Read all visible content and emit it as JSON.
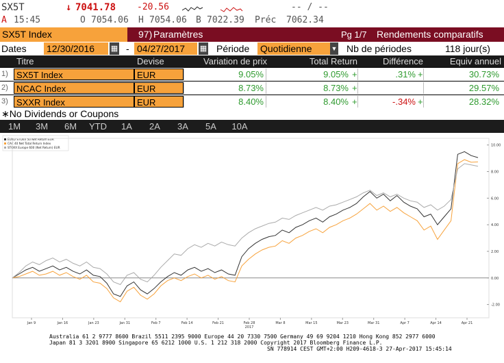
{
  "quote": {
    "ticker": "SX5T",
    "arrow": "↓",
    "last": "7041.78",
    "change": "-20.56",
    "right_placeholder": "-- / --",
    "ask_label": "A",
    "time": "15:45",
    "open_label": "O",
    "open": "7054.06",
    "high_label": "H",
    "high": "7054.06",
    "low_label": "B",
    "low": "7022.39",
    "prev_label": "Préc",
    "prev": "7062.34"
  },
  "function_bar": {
    "security": "SX5T Index",
    "menu_number": "97)",
    "menu_label": "Paramètres",
    "page": "Pg 1/7",
    "title": "Rendements comparatifs"
  },
  "dates_row": {
    "label": "Dates",
    "start": "12/30/2016",
    "dash": "-",
    "end": "04/27/2017",
    "period_label": "Période",
    "period_value": "Quotidienne",
    "nb_label": "Nb de périodes",
    "nb_value": "118 jour(s)"
  },
  "table": {
    "headers": [
      "Titre",
      "Devise",
      "Variation de prix",
      "Total Return",
      "Différence",
      "Equiv annuel"
    ],
    "rows": [
      {
        "idx": "1)",
        "title": "SX5T Index",
        "currency": "EUR",
        "price_change": "9.05%",
        "total_return": "9.05%",
        "tr_mark": "+",
        "difference": ".31%",
        "diff_mark": "+",
        "annual": "30.73%"
      },
      {
        "idx": "2)",
        "title": "NCAC Index",
        "currency": "EUR",
        "price_change": "8.73%",
        "total_return": "8.73%",
        "tr_mark": "+",
        "difference": "",
        "diff_mark": "",
        "annual": "29.57%"
      },
      {
        "idx": "3)",
        "title": "SXXR Index",
        "currency": "EUR",
        "price_change": "8.40%",
        "total_return": "8.40%",
        "tr_mark": "+",
        "difference": "-.34%",
        "diff_mark": "+",
        "annual": "28.32%"
      }
    ]
  },
  "note": "∗No Dividends or Coupons",
  "tabs": [
    "1M",
    "3M",
    "6M",
    "YTD",
    "1A",
    "2A",
    "3A",
    "5A",
    "10A"
  ],
  "chart_data": {
    "type": "line",
    "legend": [
      "EURO STOXX 50 Net Return EUR",
      "CAC 40 Net Total Return Index",
      "STOXX Europe 600 (Net Return) EUR"
    ],
    "x_ticks": [
      "Jan 9",
      "Jan 16",
      "Jan 23",
      "Jan 31",
      "Feb 7",
      "Feb 14",
      "Feb 21",
      "Feb 28",
      "Mar 8",
      "Mar 15",
      "Mar 23",
      "Mar 31",
      "Apr 7",
      "Apr 14",
      "Apr 21"
    ],
    "x_year": "2017",
    "y_ticks": [
      "10.00",
      "8.00",
      "6.00",
      "4.00",
      "2.00",
      "0.00",
      "-2.00"
    ],
    "ylim": [
      -3,
      10.5
    ],
    "series": [
      {
        "name": "EURO STOXX 50 Net Return EUR",
        "color": "#333333",
        "values": [
          0.0,
          0.3,
          0.6,
          0.8,
          0.5,
          0.7,
          0.9,
          0.6,
          0.8,
          0.5,
          0.3,
          0.6,
          0.2,
          0.1,
          -0.4,
          -1.2,
          -1.4,
          -0.6,
          -0.3,
          -0.9,
          -1.2,
          -0.8,
          -0.3,
          0.1,
          0.4,
          0.2,
          0.6,
          0.8,
          0.5,
          0.7,
          0.4,
          0.6,
          0.3,
          0.2,
          1.6,
          2.2,
          2.6,
          2.9,
          3.1,
          3.2,
          3.6,
          3.4,
          3.8,
          4.0,
          4.3,
          4.5,
          4.2,
          4.6,
          4.8,
          5.1,
          5.3,
          5.6,
          6.1,
          6.5,
          6.0,
          6.3,
          5.8,
          6.2,
          5.7,
          5.4,
          5.2,
          4.6,
          4.8,
          4.0,
          4.6,
          5.2,
          9.3,
          9.5,
          9.2,
          9.05
        ]
      },
      {
        "name": "CAC 40 Net Total Return Index",
        "color": "#f7a23b",
        "values": [
          0.0,
          0.1,
          0.3,
          0.5,
          0.2,
          0.3,
          0.5,
          0.2,
          0.4,
          0.1,
          -0.1,
          0.2,
          -0.3,
          -0.4,
          -0.8,
          -1.5,
          -1.8,
          -1.0,
          -0.7,
          -1.3,
          -1.6,
          -1.2,
          -0.6,
          -0.2,
          0.0,
          -0.2,
          0.1,
          0.3,
          0.0,
          0.2,
          -0.1,
          0.1,
          -0.2,
          -0.3,
          0.9,
          1.4,
          1.8,
          2.1,
          2.3,
          2.4,
          2.8,
          2.6,
          3.0,
          3.2,
          3.5,
          3.7,
          3.4,
          3.8,
          4.0,
          4.3,
          4.5,
          4.8,
          5.2,
          5.6,
          5.1,
          5.4,
          5.0,
          5.3,
          4.9,
          4.6,
          4.3,
          3.6,
          3.9,
          2.9,
          3.6,
          4.3,
          8.6,
          8.9,
          8.7,
          8.73
        ]
      },
      {
        "name": "STOXX Europe 600 (Net Return) EUR",
        "color": "#aaaaaa",
        "values": [
          0.0,
          0.4,
          0.9,
          1.2,
          1.0,
          1.3,
          1.5,
          1.2,
          1.4,
          1.1,
          0.9,
          1.2,
          0.8,
          0.7,
          0.3,
          -0.3,
          -0.5,
          0.2,
          0.4,
          -0.1,
          -0.3,
          0.2,
          0.8,
          1.3,
          1.8,
          1.7,
          2.2,
          2.5,
          2.3,
          2.6,
          2.4,
          2.7,
          2.5,
          2.4,
          3.0,
          3.4,
          3.7,
          3.9,
          4.1,
          4.2,
          4.5,
          4.4,
          4.7,
          4.9,
          5.1,
          5.3,
          5.1,
          5.4,
          5.5,
          5.7,
          5.9,
          6.1,
          6.4,
          6.6,
          6.2,
          6.4,
          6.1,
          6.3,
          6.0,
          5.8,
          5.7,
          5.3,
          5.5,
          5.1,
          5.4,
          5.9,
          8.2,
          8.6,
          8.5,
          8.4
        ]
      }
    ]
  },
  "footer": {
    "line1": "Australia 61 2 9777 8600 Brazil 5511 2395 9000 Europe 44 20 7330 7500 Germany 49 69 9204 1210 Hong Kong 852 2977 6000",
    "line2": "Japan 81 3 3201 8900          Singapore 65 6212 1000          U.S. 1 212 318 2000          Copyright 2017 Bloomberg Finance L.P.",
    "line3": "SN 778914 CEST GMT+2:00 H209-4618-3 27-Apr-2017 15:45:14"
  }
}
